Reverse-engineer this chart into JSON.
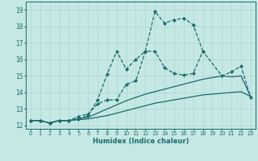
{
  "xlabel": "Humidex (Indice chaleur)",
  "xlim": [
    -0.5,
    23.5
  ],
  "ylim": [
    11.8,
    19.5
  ],
  "xticks": [
    0,
    1,
    2,
    3,
    4,
    5,
    6,
    7,
    8,
    9,
    10,
    11,
    12,
    13,
    14,
    15,
    16,
    17,
    18,
    19,
    20,
    21,
    22,
    23
  ],
  "yticks": [
    12,
    13,
    14,
    15,
    16,
    17,
    18,
    19
  ],
  "bg_color": "#c5e8e5",
  "line_color": "#1a6b6b",
  "grid_color": "#aed4d0",
  "line1_x": [
    0,
    1,
    2,
    3,
    4,
    5,
    6,
    7,
    8,
    9,
    10,
    11,
    12,
    13,
    14,
    15,
    16,
    17,
    18
  ],
  "line1_y": [
    12.3,
    12.3,
    12.15,
    12.3,
    12.3,
    12.4,
    12.6,
    13.55,
    15.1,
    16.5,
    15.4,
    16.0,
    16.5,
    18.9,
    18.2,
    18.4,
    18.5,
    18.1,
    16.5
  ],
  "line2_x": [
    0,
    1,
    2,
    3,
    4,
    5,
    6,
    7,
    8,
    9,
    10,
    11,
    12,
    13,
    14,
    15,
    16,
    17,
    18,
    20,
    21,
    22,
    23
  ],
  "line2_y": [
    12.3,
    12.3,
    12.15,
    12.3,
    12.3,
    12.55,
    12.7,
    13.3,
    13.55,
    13.55,
    14.5,
    14.7,
    16.5,
    16.5,
    15.5,
    15.15,
    15.05,
    15.15,
    16.5,
    15.0,
    15.25,
    15.6,
    13.7
  ],
  "line3_x": [
    0,
    1,
    2,
    3,
    4,
    5,
    6,
    7,
    8,
    9,
    10,
    11,
    12,
    13,
    14,
    15,
    16,
    17,
    18,
    19,
    20,
    21,
    22,
    23
  ],
  "line3_y": [
    12.3,
    12.3,
    12.15,
    12.3,
    12.3,
    12.4,
    12.5,
    12.75,
    13.0,
    13.25,
    13.5,
    13.7,
    13.9,
    14.05,
    14.2,
    14.35,
    14.5,
    14.65,
    14.8,
    14.9,
    15.0,
    14.95,
    15.0,
    13.75
  ],
  "line4_x": [
    0,
    1,
    2,
    3,
    4,
    5,
    6,
    7,
    8,
    9,
    10,
    11,
    12,
    13,
    14,
    15,
    16,
    17,
    18,
    19,
    20,
    21,
    22,
    23
  ],
  "line4_y": [
    12.3,
    12.3,
    12.15,
    12.3,
    12.3,
    12.35,
    12.4,
    12.5,
    12.6,
    12.75,
    12.9,
    13.05,
    13.2,
    13.35,
    13.45,
    13.55,
    13.65,
    13.75,
    13.85,
    13.9,
    13.95,
    14.0,
    14.05,
    13.75
  ]
}
